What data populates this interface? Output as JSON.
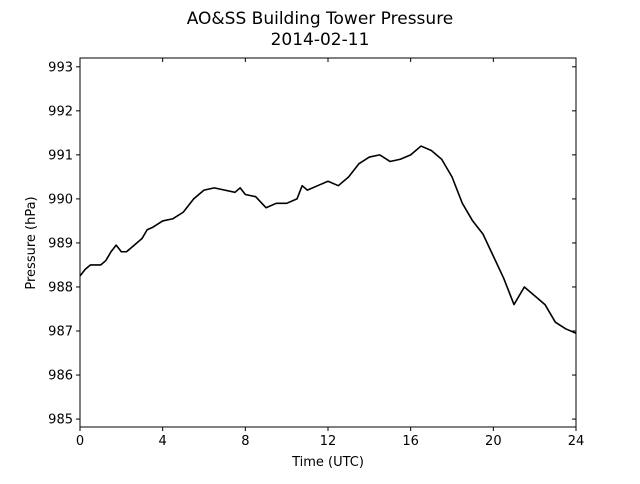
{
  "chart_data": {
    "type": "line",
    "title": "AO&SS Building Tower Pressure",
    "subtitle": "2014-02-11",
    "x_label": "Time (UTC)",
    "y_label": "Pressure (hPa)",
    "x": [
      0,
      0.25,
      0.5,
      0.75,
      1,
      1.25,
      1.5,
      1.75,
      2,
      2.25,
      2.5,
      3,
      3.25,
      3.5,
      4,
      4.5,
      5,
      5.5,
      6,
      6.5,
      7,
      7.5,
      7.75,
      8,
      8.5,
      9,
      9.5,
      10,
      10.5,
      10.75,
      11,
      11.5,
      12,
      12.5,
      13,
      13.5,
      14,
      14.5,
      15,
      15.5,
      16,
      16.5,
      17,
      17.5,
      18,
      18.5,
      19,
      19.5,
      20,
      20.5,
      21,
      21.5,
      22,
      22.5,
      23,
      23.5,
      24
    ],
    "series": [
      {
        "name": "Pressure",
        "color": "#000000",
        "values": [
          988.25,
          988.4,
          988.5,
          988.5,
          988.5,
          988.6,
          988.8,
          988.95,
          988.8,
          988.8,
          988.9,
          989.1,
          989.3,
          989.35,
          989.5,
          989.55,
          989.7,
          990.0,
          990.2,
          990.25,
          990.2,
          990.15,
          990.25,
          990.1,
          990.05,
          989.8,
          989.9,
          989.9,
          990.0,
          990.3,
          990.2,
          990.3,
          990.4,
          990.3,
          990.5,
          990.8,
          990.95,
          991.0,
          990.85,
          990.9,
          991.0,
          991.2,
          991.1,
          990.9,
          990.5,
          989.9,
          989.5,
          989.2,
          988.7,
          988.2,
          987.6,
          988.0,
          987.8,
          987.6,
          987.2,
          987.05,
          986.95
        ]
      }
    ],
    "xlim": [
      0,
      24
    ],
    "xticks": [
      0,
      4,
      8,
      12,
      16,
      20,
      24
    ],
    "ylim": [
      984.82,
      993.2
    ],
    "yticks": [
      985,
      986,
      987,
      988,
      989,
      990,
      991,
      992,
      993
    ]
  }
}
